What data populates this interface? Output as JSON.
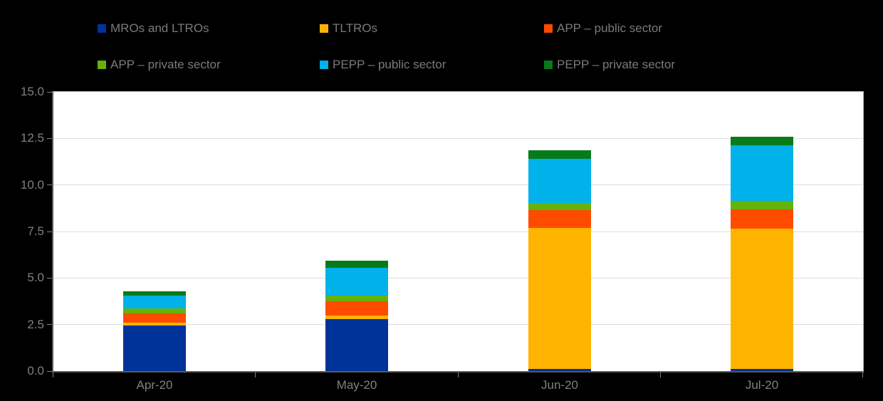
{
  "chart": {
    "background_color": "#000000",
    "plot_background_color": "#ffffff",
    "gridline_color": "#dcdcdc",
    "axis_color": "#595959",
    "plot_border_color": "#b3b3b3",
    "tick_label_color": "#808080",
    "legend_text_color": "#7a7a7a"
  },
  "chart_data": {
    "type": "bar",
    "stacked": true,
    "title": "",
    "xlabel": "",
    "ylabel": "",
    "ylim": [
      0,
      15
    ],
    "ytick_labels": [
      "0.0",
      "2.5",
      "5.0",
      "7.5",
      "10.0",
      "12.5",
      "15.0"
    ],
    "grid": "horizontal",
    "legend_position": "top",
    "legend_columns": 3,
    "categories": [
      "Apr-20",
      "May-20",
      "Jun-20",
      "Jul-20"
    ],
    "series": [
      {
        "name": "MROs and LTROs",
        "color": "#003399",
        "values": [
          2.45,
          2.8,
          0.1,
          0.1
        ]
      },
      {
        "name": "TLTROs",
        "color": "#FFB400",
        "values": [
          0.15,
          0.2,
          7.6,
          7.55
        ]
      },
      {
        "name": "APP – public sector",
        "color": "#FF4B00",
        "values": [
          0.5,
          0.75,
          0.95,
          1.05
        ]
      },
      {
        "name": "APP – private sector",
        "color": "#65B30A",
        "values": [
          0.25,
          0.3,
          0.4,
          0.45
        ]
      },
      {
        "name": "PEPP – public sector",
        "color": "#00B1EA",
        "values": [
          0.7,
          1.5,
          2.35,
          3.0
        ]
      },
      {
        "name": "PEPP – private sector",
        "color": "#077B1A",
        "values": [
          0.25,
          0.4,
          0.45,
          0.45
        ]
      }
    ],
    "totals": [
      4.3,
      5.95,
      11.85,
      12.6
    ]
  }
}
